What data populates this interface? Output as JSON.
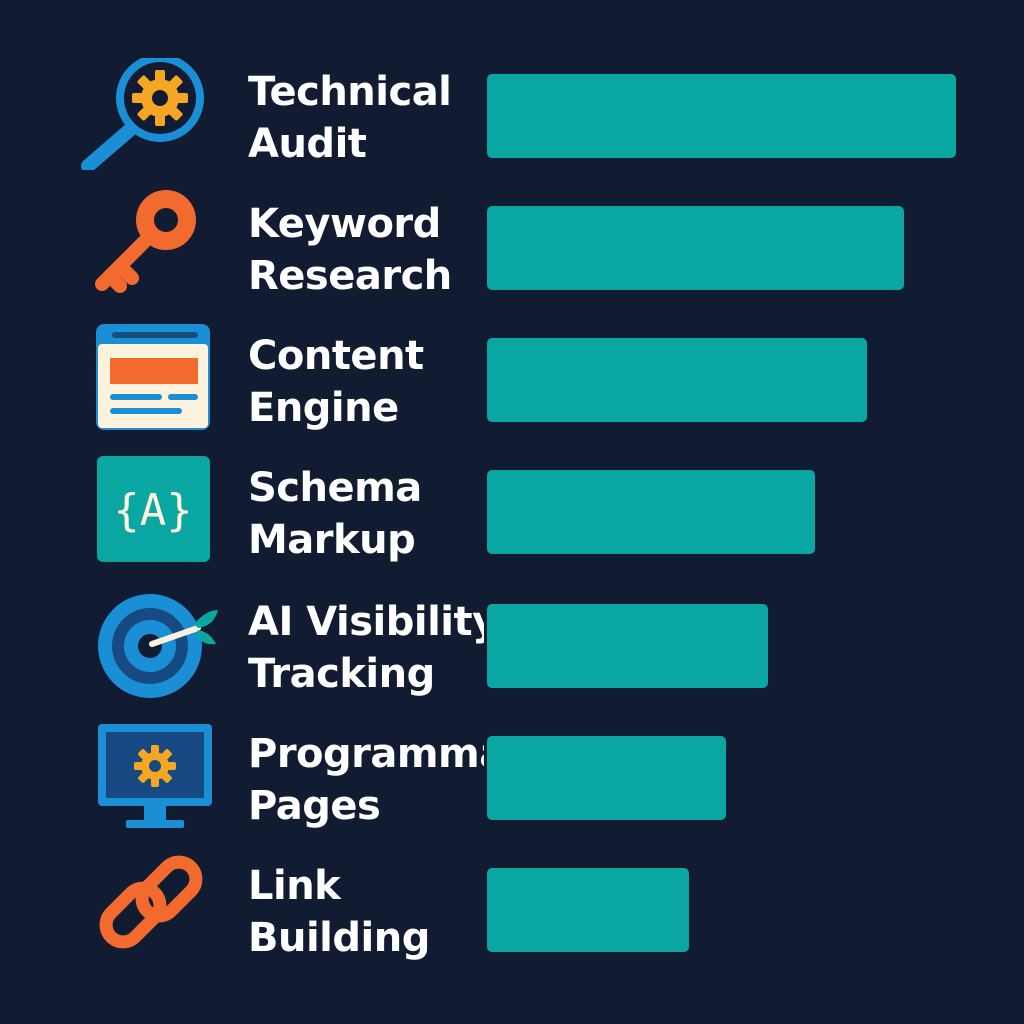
{
  "colors": {
    "background": "#111c33",
    "bar": "#0aa6a2",
    "label": "#ffffff",
    "icon_blue": "#1b8fd6",
    "icon_orange": "#f26a2e",
    "icon_gold": "#f5a623"
  },
  "chart_data": {
    "type": "bar",
    "orientation": "horizontal",
    "title": "",
    "xlabel": "",
    "ylabel": "",
    "xlim": [
      0,
      100
    ],
    "grid": false,
    "legend": "none",
    "categories": [
      "Technical Audit",
      "Keyword Research",
      "Content Engine",
      "Schema Markup",
      "AI Visibility Tracking",
      "Programmatic Pages",
      "Link Building"
    ],
    "values": [
      100,
      89,
      81,
      70,
      60,
      51,
      43
    ]
  },
  "rows": [
    {
      "line1": "Technical",
      "line2": "Audit",
      "icon": "magnifier-gear-icon"
    },
    {
      "line1": "Keyword",
      "line2": "Research",
      "icon": "key-icon"
    },
    {
      "line1": "Content",
      "line2": "Engine",
      "icon": "webpage-icon"
    },
    {
      "line1": "Schema",
      "line2": "Markup",
      "icon": "schema-code-icon"
    },
    {
      "line1": "AI Visibility",
      "line2": "Tracking",
      "icon": "target-icon"
    },
    {
      "line1": "Programmatic",
      "line2": "Pages",
      "icon": "monitor-gear-icon"
    },
    {
      "line1": "Link",
      "line2": "Building",
      "icon": "chain-link-icon"
    }
  ]
}
